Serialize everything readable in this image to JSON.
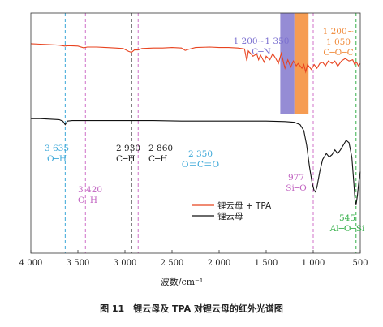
{
  "caption": "图 11　锂云母及 TPA 对锂云母的红外光谱图",
  "chart_data": {
    "type": "line",
    "xlabel": "波数/cm⁻¹",
    "xlim": [
      4000,
      500
    ],
    "xticks": [
      "4 000",
      "3 500",
      "3 000",
      "2 500",
      "2 000",
      "1 500",
      "1 000",
      "500"
    ],
    "xtick_values": [
      4000,
      3500,
      3000,
      2500,
      2000,
      1500,
      1000,
      500
    ],
    "y_axis_shown": false,
    "grid": false,
    "legend_position": "lower-right",
    "series": [
      {
        "name": "锂云母 + TPA",
        "color": "#e8431f",
        "values": [
          [
            4000,
            0.872
          ],
          [
            3900,
            0.87
          ],
          [
            3800,
            0.868
          ],
          [
            3700,
            0.866
          ],
          [
            3640,
            0.862
          ],
          [
            3600,
            0.864
          ],
          [
            3500,
            0.862
          ],
          [
            3440,
            0.855
          ],
          [
            3400,
            0.858
          ],
          [
            3300,
            0.858
          ],
          [
            3200,
            0.856
          ],
          [
            3100,
            0.854
          ],
          [
            3020,
            0.852
          ],
          [
            2960,
            0.84
          ],
          [
            2930,
            0.836
          ],
          [
            2900,
            0.846
          ],
          [
            2860,
            0.846
          ],
          [
            2820,
            0.852
          ],
          [
            2700,
            0.854
          ],
          [
            2600,
            0.854
          ],
          [
            2500,
            0.856
          ],
          [
            2400,
            0.854
          ],
          [
            2360,
            0.844
          ],
          [
            2330,
            0.848
          ],
          [
            2250,
            0.856
          ],
          [
            2100,
            0.858
          ],
          [
            2000,
            0.856
          ],
          [
            1900,
            0.856
          ],
          [
            1800,
            0.854
          ],
          [
            1730,
            0.85
          ],
          [
            1705,
            0.8
          ],
          [
            1690,
            0.842
          ],
          [
            1640,
            0.82
          ],
          [
            1600,
            0.83
          ],
          [
            1580,
            0.805
          ],
          [
            1560,
            0.825
          ],
          [
            1520,
            0.795
          ],
          [
            1500,
            0.82
          ],
          [
            1460,
            0.805
          ],
          [
            1430,
            0.83
          ],
          [
            1400,
            0.812
          ],
          [
            1370,
            0.79
          ],
          [
            1340,
            0.832
          ],
          [
            1300,
            0.77
          ],
          [
            1270,
            0.805
          ],
          [
            1240,
            0.775
          ],
          [
            1210,
            0.8
          ],
          [
            1180,
            0.78
          ],
          [
            1160,
            0.79
          ],
          [
            1120,
            0.77
          ],
          [
            1100,
            0.785
          ],
          [
            1080,
            0.755
          ],
          [
            1060,
            0.785
          ],
          [
            1020,
            0.765
          ],
          [
            990,
            0.785
          ],
          [
            960,
            0.77
          ],
          [
            930,
            0.79
          ],
          [
            900,
            0.795
          ],
          [
            870,
            0.78
          ],
          [
            840,
            0.8
          ],
          [
            800,
            0.79
          ],
          [
            770,
            0.8
          ],
          [
            740,
            0.778
          ],
          [
            700,
            0.8
          ],
          [
            660,
            0.81
          ],
          [
            620,
            0.8
          ],
          [
            580,
            0.805
          ],
          [
            560,
            0.785
          ],
          [
            540,
            0.795
          ],
          [
            520,
            0.78
          ],
          [
            500,
            0.79
          ]
        ]
      },
      {
        "name": "锂云母",
        "color": "#111111",
        "values": [
          [
            4000,
            0.56
          ],
          [
            3900,
            0.56
          ],
          [
            3800,
            0.558
          ],
          [
            3700,
            0.556
          ],
          [
            3660,
            0.55
          ],
          [
            3635,
            0.535
          ],
          [
            3610,
            0.55
          ],
          [
            3560,
            0.552
          ],
          [
            3500,
            0.552
          ],
          [
            3300,
            0.552
          ],
          [
            3000,
            0.552
          ],
          [
            2700,
            0.552
          ],
          [
            2400,
            0.55
          ],
          [
            2100,
            0.55
          ],
          [
            1800,
            0.55
          ],
          [
            1500,
            0.55
          ],
          [
            1300,
            0.548
          ],
          [
            1200,
            0.545
          ],
          [
            1140,
            0.535
          ],
          [
            1100,
            0.51
          ],
          [
            1070,
            0.45
          ],
          [
            1040,
            0.36
          ],
          [
            1010,
            0.29
          ],
          [
            990,
            0.26
          ],
          [
            977,
            0.255
          ],
          [
            960,
            0.275
          ],
          [
            930,
            0.34
          ],
          [
            900,
            0.39
          ],
          [
            860,
            0.415
          ],
          [
            830,
            0.4
          ],
          [
            800,
            0.41
          ],
          [
            770,
            0.43
          ],
          [
            740,
            0.415
          ],
          [
            710,
            0.43
          ],
          [
            680,
            0.45
          ],
          [
            650,
            0.47
          ],
          [
            620,
            0.46
          ],
          [
            590,
            0.4
          ],
          [
            570,
            0.3
          ],
          [
            555,
            0.22
          ],
          [
            545,
            0.2
          ],
          [
            530,
            0.24
          ],
          [
            515,
            0.3
          ],
          [
            500,
            0.34
          ]
        ]
      }
    ],
    "bands": [
      {
        "from": 1350,
        "to": 1200,
        "color": "#8a7fd0"
      },
      {
        "from": 1200,
        "to": 1050,
        "color": "#f5913f"
      }
    ],
    "reference_lines": [
      {
        "x": 3635,
        "color": "#3aa7d8"
      },
      {
        "x": 3420,
        "color": "#d070c8"
      },
      {
        "x": 2930,
        "color": "#333333"
      },
      {
        "x": 2860,
        "color": "#d070c8"
      },
      {
        "x": 1000,
        "color": "#d070c8"
      },
      {
        "x": 545,
        "color": "#35b04a"
      }
    ],
    "annotations": [
      {
        "lines": [
          "3 635",
          "O─H"
        ],
        "color": "#3aa7d8"
      },
      {
        "lines": [
          "3 420",
          "O─H"
        ],
        "color": "#c060c0"
      },
      {
        "lines": [
          "2 930",
          "C─H"
        ],
        "color": "#222222"
      },
      {
        "lines": [
          "2 860",
          "C─H"
        ],
        "color": "#222222"
      },
      {
        "lines": [
          "2 350",
          "O＝C＝O"
        ],
        "color": "#3aa7d8"
      },
      {
        "lines": [
          "1 200~1 350",
          "C─N"
        ],
        "color": "#7a6fd0"
      },
      {
        "lines": [
          "1 200~",
          "1 050",
          "C─O─C"
        ],
        "color": "#f08a3a"
      },
      {
        "lines": [
          "977",
          "Si─O"
        ],
        "color": "#c060c0"
      },
      {
        "lines": [
          "545",
          "Al─O─Si"
        ],
        "color": "#35b04a"
      }
    ]
  }
}
